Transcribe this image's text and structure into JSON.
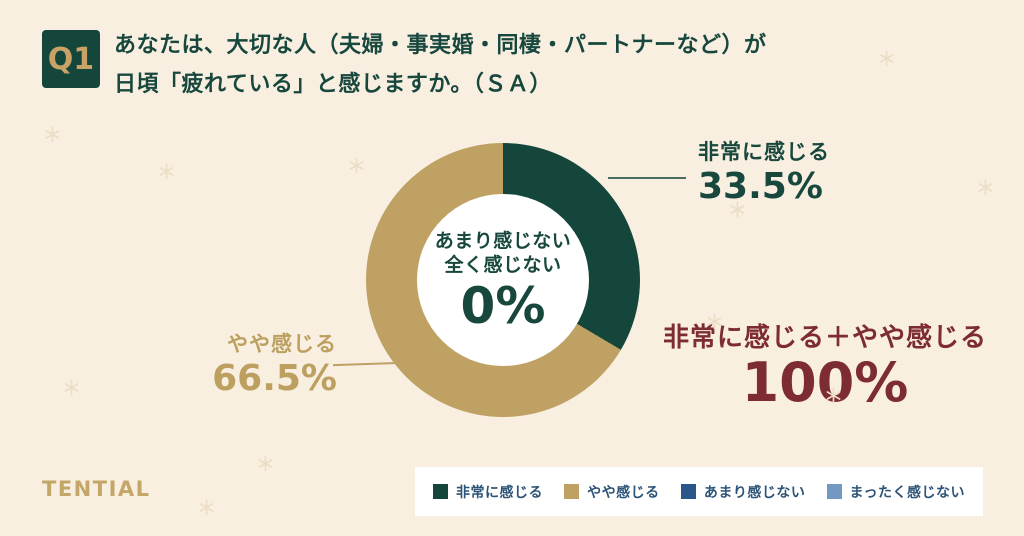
{
  "question": {
    "badge": "Q1",
    "line1": "あなたは、大切な人（夫婦・事実婚・同棲・パートナーなど）が",
    "line2": "日頃「疲れている」と感じますか。（ＳＡ）"
  },
  "chart_data": {
    "type": "pie",
    "subtype": "donut",
    "title": "Q1 あなたは、大切な人（夫婦・事実婚・同棲・パートナーなど）が日頃「疲れている」と感じますか。（ＳＡ）",
    "categories": [
      "非常に感じる",
      "やや感じる",
      "あまり感じない",
      "まったく感じない"
    ],
    "values": [
      33.5,
      66.5,
      0,
      0
    ],
    "unit": "%",
    "colors": [
      "#14463c",
      "#bfa164",
      "#2a568a",
      "#7398c2"
    ],
    "start_angle_deg": 0,
    "direction": "clockwise",
    "inner_ratio": 0.63,
    "legend_position": "bottom",
    "center_label": {
      "line1": "あまり感じない",
      "line2": "全く感じない",
      "value": "0%"
    },
    "annotations": [
      {
        "label": "非常に感じる",
        "value": "33.5%"
      },
      {
        "label": "やや感じる",
        "value": "66.5%"
      },
      {
        "label": "非常に感じる＋やや感じる",
        "value": "100%"
      }
    ]
  },
  "callouts": {
    "very": {
      "label": "非常に感じる",
      "value": "33.5%"
    },
    "somewhat": {
      "label": "やや感じる",
      "value": "66.5%"
    },
    "combined": {
      "label": "非常に感じる＋やや感じる",
      "value": "100%"
    }
  },
  "legend": {
    "items": [
      {
        "label": "非常に感じる",
        "color": "#14463c"
      },
      {
        "label": "やや感じる",
        "color": "#bfa164"
      },
      {
        "label": "あまり感じない",
        "color": "#2a568a"
      },
      {
        "label": "まったく感じない",
        "color": "#7398c2"
      }
    ]
  },
  "footer": {
    "logo": "TENTIAL"
  },
  "colors": {
    "background": "#f8efe0",
    "dark_green": "#14463c",
    "gold": "#bfa164",
    "maroon": "#7d2b35",
    "legend_text": "#2d5478",
    "sparkle": "#ecdec4"
  }
}
